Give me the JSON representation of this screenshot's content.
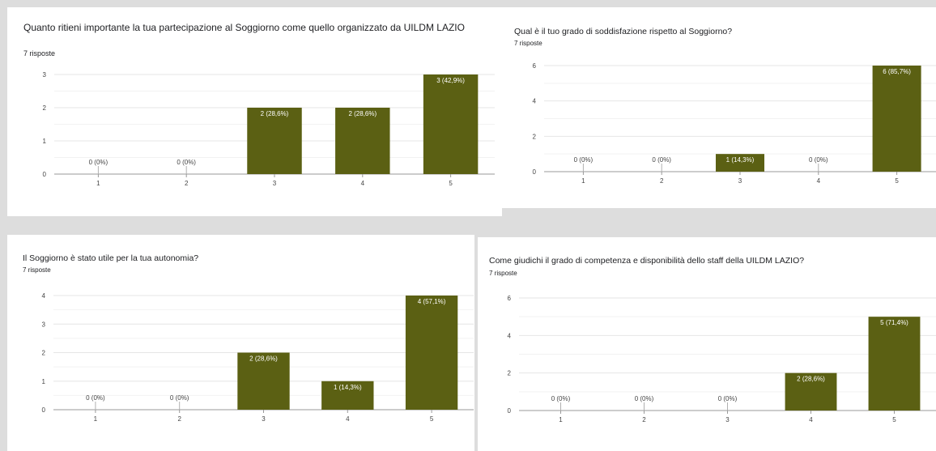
{
  "colors": {
    "bar": "#5b6013",
    "grid": "#e6e6e6",
    "axis": "#999999",
    "label_light": "#ffffff",
    "label_dark": "#444444"
  },
  "chart_data": [
    {
      "type": "bar",
      "title": "Quanto ritieni importante la tua partecipazione al Soggiorno come quello organizzato da UILDM LAZIO",
      "subtitle": "7 risposte",
      "categories": [
        "1",
        "2",
        "3",
        "4",
        "5"
      ],
      "values": [
        0,
        0,
        2,
        2,
        3
      ],
      "labels": [
        "0 (0%)",
        "0 (0%)",
        "2 (28,6%)",
        "2 (28,6%)",
        "3 (42,9%)"
      ],
      "yticks": [
        "0",
        "1",
        "2",
        "3"
      ],
      "ylim": [
        0,
        3
      ],
      "grid": true
    },
    {
      "type": "bar",
      "title": "Qual è il tuo grado di soddisfazione rispetto al Soggiorno?",
      "subtitle": "7 risposte",
      "categories": [
        "1",
        "2",
        "3",
        "4",
        "5"
      ],
      "values": [
        0,
        0,
        1,
        0,
        6
      ],
      "labels": [
        "0 (0%)",
        "0 (0%)",
        "1 (14,3%)",
        "0 (0%)",
        "6 (85,7%)"
      ],
      "yticks": [
        "0",
        "2",
        "4",
        "6"
      ],
      "ylim": [
        0,
        6
      ],
      "grid": true
    },
    {
      "type": "bar",
      "title": "Il Soggiorno è stato utile per la tua autonomia?",
      "subtitle": "7 risposte",
      "categories": [
        "1",
        "2",
        "3",
        "4",
        "5"
      ],
      "values": [
        0,
        0,
        2,
        1,
        4
      ],
      "labels": [
        "0 (0%)",
        "0 (0%)",
        "2 (28,6%)",
        "1 (14,3%)",
        "4 (57,1%)"
      ],
      "yticks": [
        "0",
        "1",
        "2",
        "3",
        "4"
      ],
      "ylim": [
        0,
        4
      ],
      "grid": true
    },
    {
      "type": "bar",
      "title": "Come giudichi il grado di competenza e disponibilità dello staff della UILDM LAZIO?",
      "subtitle": "7 risposte",
      "categories": [
        "1",
        "2",
        "3",
        "4",
        "5"
      ],
      "values": [
        0,
        0,
        0,
        2,
        5
      ],
      "labels": [
        "0 (0%)",
        "0 (0%)",
        "0 (0%)",
        "2 (28,6%)",
        "5 (71,4%)"
      ],
      "yticks": [
        "0",
        "2",
        "4",
        "6"
      ],
      "ylim": [
        0,
        6
      ],
      "grid": true
    }
  ]
}
